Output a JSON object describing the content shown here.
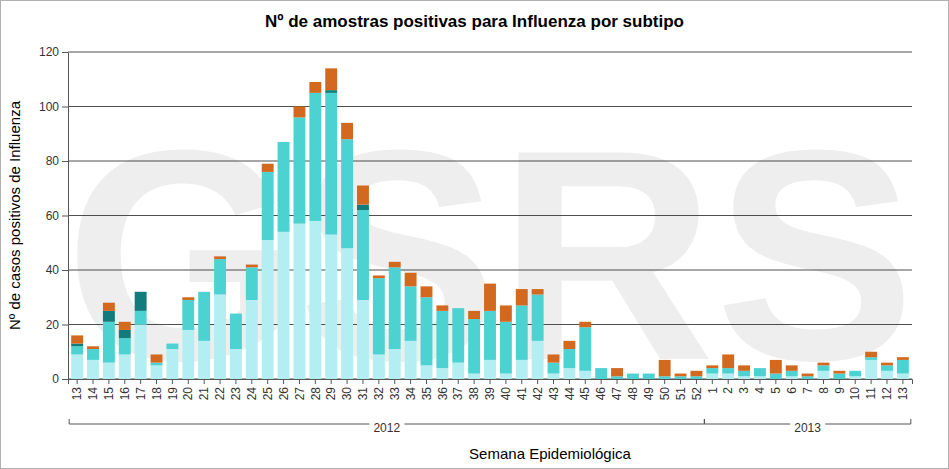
{
  "chart_data": {
    "type": "bar",
    "stacked": true,
    "title": "Nº de amostras positivas para Influenza por subtipo",
    "y_label": "Nº de casos positivos de Influenza",
    "x_label": "Semana Epidemiológica",
    "watermark": "GSRS",
    "categories": [
      "13",
      "14",
      "15",
      "16",
      "17",
      "18",
      "19",
      "20",
      "21",
      "22",
      "23",
      "24",
      "25",
      "26",
      "27",
      "28",
      "29",
      "30",
      "31",
      "32",
      "33",
      "34",
      "35",
      "36",
      "37",
      "38",
      "39",
      "40",
      "41",
      "42",
      "43",
      "44",
      "45",
      "46",
      "47",
      "48",
      "49",
      "50",
      "51",
      "52",
      "1",
      "2",
      "3",
      "4",
      "5",
      "6",
      "7",
      "8",
      "9",
      "10",
      "11",
      "12",
      "13"
    ],
    "groups": [
      {
        "label": "2012",
        "count": 40
      },
      {
        "label": "2013",
        "count": 13
      }
    ],
    "series": [
      {
        "color": "#b3eef2",
        "values": [
          9,
          7,
          6,
          9,
          20,
          5,
          11,
          18,
          14,
          31,
          11,
          29,
          51,
          54,
          57,
          58,
          53,
          48,
          29,
          9,
          11,
          14,
          5,
          4,
          6,
          2,
          7,
          2,
          7,
          14,
          2,
          4,
          3,
          0,
          0,
          0,
          0,
          0,
          0,
          0,
          2,
          2,
          1,
          1,
          0,
          1,
          0,
          3,
          0,
          1,
          7,
          3,
          2
        ]
      },
      {
        "color": "#4dd2d2",
        "values": [
          3,
          4,
          15,
          6,
          5,
          1,
          2,
          11,
          18,
          13,
          13,
          12,
          25,
          33,
          39,
          47,
          52,
          40,
          33,
          28,
          30,
          20,
          25,
          21,
          20,
          20,
          18,
          19,
          20,
          17,
          4,
          7,
          16,
          4,
          1,
          2,
          2,
          1,
          1,
          1,
          2,
          2,
          2,
          3,
          2,
          2,
          1,
          2,
          2,
          2,
          1,
          2,
          5
        ]
      },
      {
        "color": "#127b7b",
        "values": [
          1,
          0,
          4,
          3,
          7,
          0,
          0,
          0,
          0,
          0,
          0,
          0,
          0,
          0,
          0,
          0,
          1,
          0,
          2,
          0,
          0,
          0,
          0,
          0,
          0,
          0,
          0,
          0,
          0,
          0,
          0,
          0,
          0,
          0,
          0,
          0,
          0,
          0,
          0,
          0,
          0,
          0,
          0,
          0,
          0,
          0,
          0,
          0,
          0,
          0,
          0,
          0,
          0
        ]
      },
      {
        "color": "#d2691e",
        "values": [
          3,
          1,
          3,
          3,
          0,
          3,
          0,
          1,
          0,
          1,
          0,
          1,
          3,
          0,
          4,
          4,
          8,
          6,
          7,
          1,
          2,
          5,
          4,
          2,
          0,
          3,
          10,
          6,
          6,
          2,
          3,
          3,
          2,
          0,
          3,
          0,
          0,
          6,
          1,
          2,
          1,
          5,
          2,
          0,
          5,
          2,
          1,
          1,
          1,
          0,
          2,
          1,
          1
        ]
      }
    ],
    "ylim": [
      0,
      120
    ],
    "yticks": [
      0,
      20,
      40,
      60,
      80,
      100,
      120
    ],
    "grid": true
  }
}
